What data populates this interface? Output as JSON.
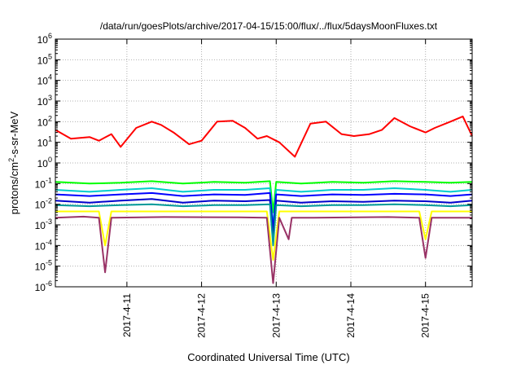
{
  "chart_data": {
    "type": "line",
    "title": "/data/run/goesPlots/archive/2017-04-15/15:00/flux/../flux/5daysMoonFluxes.txt",
    "xlabel": "Coordinated Universal Time (UTC)",
    "ylabel": {
      "prefix": "protons/cm",
      "superscript": "2",
      "suffix": "-s-sr-MeV"
    },
    "y_scale": "log",
    "ylim": [
      1e-06,
      1000000.0
    ],
    "y_ticks": [
      {
        "base": "10",
        "exp": "6"
      },
      {
        "base": "10",
        "exp": "5"
      },
      {
        "base": "10",
        "exp": "4"
      },
      {
        "base": "10",
        "exp": "3"
      },
      {
        "base": "10",
        "exp": "2"
      },
      {
        "base": "10",
        "exp": "1"
      },
      {
        "base": "10",
        "exp": "0"
      },
      {
        "base": "10",
        "exp": "-1"
      },
      {
        "base": "10",
        "exp": "-2"
      },
      {
        "base": "10",
        "exp": "-3"
      },
      {
        "base": "10",
        "exp": "-4"
      },
      {
        "base": "10",
        "exp": "-5"
      },
      {
        "base": "10",
        "exp": "-6"
      }
    ],
    "xlim": [
      "2017-04-10T01:00",
      "2017-04-15T15:00"
    ],
    "x_ticks": [
      "2017-4-11",
      "2017-4-12",
      "2017-4-13",
      "2017-4-14",
      "2017-4-15"
    ],
    "grid": true,
    "series": [
      {
        "color": "#ff0000",
        "x": [
          "2017-04-10T01:00",
          "2017-04-10T06:00",
          "2017-04-10T12:00",
          "2017-04-10T15:00",
          "2017-04-10T19:00",
          "2017-04-10T22:00",
          "2017-04-11T03:00",
          "2017-04-11T08:00",
          "2017-04-11T11:00",
          "2017-04-11T15:00",
          "2017-04-11T20:00",
          "2017-04-12T00:00",
          "2017-04-12T05:00",
          "2017-04-12T10:00",
          "2017-04-12T14:00",
          "2017-04-12T18:00",
          "2017-04-12T21:00",
          "2017-04-13T01:00",
          "2017-04-13T06:00",
          "2017-04-13T11:00",
          "2017-04-13T16:00",
          "2017-04-13T21:00",
          "2017-04-14T01:00",
          "2017-04-14T06:00",
          "2017-04-14T10:00",
          "2017-04-14T14:00",
          "2017-04-14T19:00",
          "2017-04-15T00:00",
          "2017-04-15T03:00",
          "2017-04-15T08:00",
          "2017-04-15T12:00",
          "2017-04-15T15:00"
        ],
        "y": [
          40,
          15,
          18,
          12,
          25,
          6,
          50,
          100,
          70,
          30,
          8,
          12,
          100,
          110,
          50,
          15,
          20,
          10,
          2,
          80,
          100,
          25,
          20,
          25,
          40,
          150,
          60,
          30,
          50,
          100,
          180,
          20
        ]
      },
      {
        "color": "#00ff00",
        "x": [
          "2017-04-10T01:00",
          "2017-04-10T12:00",
          "2017-04-10T22:00",
          "2017-04-11T08:00",
          "2017-04-11T18:00",
          "2017-04-12T04:00",
          "2017-04-12T14:00",
          "2017-04-12T22:00",
          "2017-04-12T23:00",
          "2017-04-13T00:00",
          "2017-04-13T08:00",
          "2017-04-13T18:00",
          "2017-04-14T04:00",
          "2017-04-14T14:00",
          "2017-04-15T00:00",
          "2017-04-15T08:00",
          "2017-04-15T15:00"
        ],
        "y": [
          0.12,
          0.1,
          0.11,
          0.13,
          0.1,
          0.12,
          0.11,
          0.13,
          0.004,
          0.12,
          0.1,
          0.12,
          0.11,
          0.13,
          0.12,
          0.11,
          0.12
        ]
      },
      {
        "color": "#00cccc",
        "x": [
          "2017-04-10T01:00",
          "2017-04-10T12:00",
          "2017-04-10T22:00",
          "2017-04-11T08:00",
          "2017-04-11T18:00",
          "2017-04-12T04:00",
          "2017-04-12T14:00",
          "2017-04-12T22:00",
          "2017-04-12T23:00",
          "2017-04-13T00:00",
          "2017-04-13T08:00",
          "2017-04-13T18:00",
          "2017-04-14T04:00",
          "2017-04-14T14:00",
          "2017-04-15T00:00",
          "2017-04-15T08:00",
          "2017-04-15T15:00"
        ],
        "y": [
          0.05,
          0.04,
          0.05,
          0.06,
          0.04,
          0.05,
          0.05,
          0.06,
          0.0008,
          0.05,
          0.04,
          0.05,
          0.05,
          0.06,
          0.05,
          0.04,
          0.05
        ]
      },
      {
        "color": "#0000ff",
        "x": [
          "2017-04-10T01:00",
          "2017-04-10T12:00",
          "2017-04-10T22:00",
          "2017-04-11T08:00",
          "2017-04-11T18:00",
          "2017-04-12T04:00",
          "2017-04-12T14:00",
          "2017-04-12T22:00",
          "2017-04-12T23:00",
          "2017-04-13T00:00",
          "2017-04-13T08:00",
          "2017-04-13T18:00",
          "2017-04-14T04:00",
          "2017-04-14T14:00",
          "2017-04-15T00:00",
          "2017-04-15T08:00",
          "2017-04-15T15:00"
        ],
        "y": [
          0.03,
          0.025,
          0.03,
          0.035,
          0.025,
          0.03,
          0.028,
          0.035,
          0.0005,
          0.03,
          0.025,
          0.03,
          0.028,
          0.032,
          0.03,
          0.025,
          0.03
        ]
      },
      {
        "color": "#0000cc",
        "x": [
          "2017-04-10T01:00",
          "2017-04-10T12:00",
          "2017-04-10T22:00",
          "2017-04-11T08:00",
          "2017-04-11T18:00",
          "2017-04-12T04:00",
          "2017-04-12T14:00",
          "2017-04-12T22:00",
          "2017-04-12T23:00",
          "2017-04-13T00:00",
          "2017-04-13T08:00",
          "2017-04-13T18:00",
          "2017-04-14T04:00",
          "2017-04-14T14:00",
          "2017-04-15T00:00",
          "2017-04-15T08:00",
          "2017-04-15T15:00"
        ],
        "y": [
          0.015,
          0.012,
          0.015,
          0.018,
          0.012,
          0.015,
          0.014,
          0.016,
          0.0003,
          0.015,
          0.012,
          0.014,
          0.013,
          0.015,
          0.014,
          0.012,
          0.015
        ]
      },
      {
        "color": "#009999",
        "x": [
          "2017-04-10T01:00",
          "2017-04-10T12:00",
          "2017-04-10T22:00",
          "2017-04-11T08:00",
          "2017-04-11T18:00",
          "2017-04-12T04:00",
          "2017-04-12T14:00",
          "2017-04-12T22:00",
          "2017-04-12T23:00",
          "2017-04-13T00:00",
          "2017-04-13T08:00",
          "2017-04-13T18:00",
          "2017-04-14T04:00",
          "2017-04-14T14:00",
          "2017-04-15T00:00",
          "2017-04-15T08:00",
          "2017-04-15T15:00"
        ],
        "y": [
          0.009,
          0.008,
          0.009,
          0.01,
          0.008,
          0.009,
          0.009,
          0.01,
          0.0001,
          0.009,
          0.008,
          0.009,
          0.009,
          0.01,
          0.009,
          0.008,
          0.009
        ]
      },
      {
        "color": "#ffff00",
        "x": [
          "2017-04-10T01:00",
          "2017-04-10T15:00",
          "2017-04-10T17:00",
          "2017-04-10T19:00",
          "2017-04-11T12:00",
          "2017-04-12T12:00",
          "2017-04-12T21:00",
          "2017-04-12T23:00",
          "2017-04-13T01:00",
          "2017-04-13T12:00",
          "2017-04-14T12:00",
          "2017-04-14T22:00",
          "2017-04-15T00:00",
          "2017-04-15T02:00",
          "2017-04-15T15:00"
        ],
        "y": [
          0.0045,
          0.0045,
          0.0001,
          0.0045,
          0.0045,
          0.0045,
          0.0045,
          2e-05,
          0.0045,
          0.0045,
          0.0045,
          0.0045,
          0.0002,
          0.0045,
          0.0045
        ]
      },
      {
        "color": "#993366",
        "x": [
          "2017-04-10T01:00",
          "2017-04-10T10:00",
          "2017-04-10T15:00",
          "2017-04-10T17:00",
          "2017-04-10T19:00",
          "2017-04-11T12:00",
          "2017-04-12T12:00",
          "2017-04-12T21:00",
          "2017-04-12T23:00",
          "2017-04-13T01:00",
          "2017-04-13T04:00",
          "2017-04-13T05:00",
          "2017-04-13T06:00",
          "2017-04-13T12:00",
          "2017-04-14T12:00",
          "2017-04-14T22:00",
          "2017-04-15T00:00",
          "2017-04-15T02:00",
          "2017-04-15T15:00"
        ],
        "y": [
          0.0022,
          0.0025,
          0.0022,
          5e-06,
          0.0022,
          0.0024,
          0.0023,
          0.0022,
          1.5e-06,
          0.0022,
          0.0002,
          0.0022,
          0.0022,
          0.0022,
          0.0024,
          0.0022,
          2.5e-05,
          0.0022,
          0.0022
        ]
      }
    ]
  }
}
